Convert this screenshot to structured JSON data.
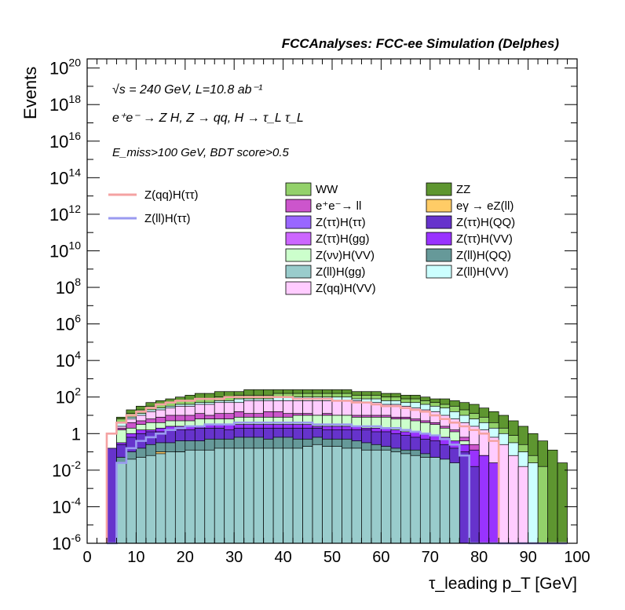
{
  "chart_data": {
    "type": "area",
    "title": "FCCAnalyses: FCC-ee Simulation (Delphes)",
    "xlabel": "τ_leading p_T [GeV]",
    "ylabel": "Events",
    "xlim": [
      0,
      100
    ],
    "ylim_log10": [
      -6,
      20.5
    ],
    "log_y": true,
    "x_ticks": [
      "0",
      "10",
      "20",
      "30",
      "40",
      "50",
      "60",
      "70",
      "80",
      "90",
      "100"
    ],
    "y_ticks": [
      "10^-6",
      "10^-4",
      "10^-2",
      "1",
      "10^2",
      "10^4",
      "10^6",
      "10^8",
      "10^10",
      "10^12",
      "10^14",
      "10^16",
      "10^18",
      "10^20"
    ],
    "annotations": {
      "energy": "√s = 240 GeV, L=10.8 ab⁻¹",
      "process": "e⁺e⁻ → Z H, Z → qq, H → τ_L τ_L",
      "cuts": "E_miss>100 GeV, BDT score>0.5"
    },
    "legend_lines": [
      {
        "name": "Z(qq)H(ττ)",
        "color": "#f4a2a2"
      },
      {
        "name": "Z(ll)H(ττ)",
        "color": "#9a9af0"
      }
    ],
    "legend_stack": [
      {
        "name": "WW",
        "color": "#93d16a"
      },
      {
        "name": "ZZ",
        "color": "#5e9630"
      },
      {
        "name": "e⁺e⁻→ ll",
        "color": "#cc55cc"
      },
      {
        "name": "eγ → eZ(ll)",
        "color": "#ffcc66"
      },
      {
        "name": "Z(ττ)H(ττ)",
        "color": "#9966ff"
      },
      {
        "name": "Z(ττ)H(QQ)",
        "color": "#6633cc"
      },
      {
        "name": "Z(ττ)H(gg)",
        "color": "#cc66ff"
      },
      {
        "name": "Z(ττ)H(VV)",
        "color": "#9933ff"
      },
      {
        "name": "Z(νν)H(VV)",
        "color": "#ccffcc"
      },
      {
        "name": "Z(ll)H(QQ)",
        "color": "#669999"
      },
      {
        "name": "Z(ll)H(gg)",
        "color": "#99cccc"
      },
      {
        "name": "Z(ll)H(VV)",
        "color": "#ccffff"
      },
      {
        "name": "Z(qq)H(VV)",
        "color": "#ffccff"
      }
    ],
    "bin_low_edges": [
      4,
      6,
      8,
      10,
      12,
      14,
      16,
      18,
      20,
      22,
      24,
      26,
      28,
      30,
      32,
      34,
      36,
      38,
      40,
      42,
      44,
      46,
      48,
      50,
      52,
      54,
      56,
      58,
      60,
      62,
      64,
      66,
      68,
      70,
      72,
      74,
      76,
      78,
      80,
      82,
      84,
      86,
      88,
      90,
      92,
      94,
      96
    ],
    "stack_log10": {
      "Z(ll)H(gg)": [
        -6,
        -1.6,
        -1.4,
        -1.3,
        -1.2,
        -1.1,
        -1.0,
        -1.0,
        -0.9,
        -0.9,
        -0.9,
        -0.8,
        -0.8,
        -0.8,
        -0.8,
        -0.8,
        -0.8,
        -0.8,
        -0.8,
        -0.8,
        -0.7,
        -0.6,
        -0.7,
        -0.7,
        -0.8,
        -0.8,
        -0.9,
        -0.9,
        -0.9,
        -1.0,
        -1.1,
        -1.2,
        -1.3,
        -1.3,
        -1.4,
        -1.6,
        -6,
        -6,
        -6,
        -6,
        -6,
        -6,
        -6,
        -6,
        -6,
        -6,
        -6
      ],
      "eγ → eZ(ll)": [
        -6,
        -6,
        -6,
        -6,
        -6,
        -1.0,
        -6,
        -1.0,
        -6,
        -6,
        -6,
        -6,
        -6,
        -6,
        -6,
        -1.0,
        -6,
        -6,
        -1.0,
        -1.0,
        -6,
        -6,
        -6,
        -6,
        -6,
        -6,
        -6,
        -6,
        -6,
        -6,
        -6,
        -6,
        -6,
        -6,
        -6,
        -6,
        -6,
        -6,
        -6,
        -6,
        -6,
        -6,
        -6,
        -6,
        -6,
        -6,
        -6
      ],
      "Z(ll)H(QQ)": [
        -6,
        -1.3,
        -1.0,
        -0.8,
        -0.6,
        -0.5,
        -0.5,
        -0.4,
        -0.4,
        -0.4,
        -0.3,
        -0.3,
        -0.3,
        -0.2,
        -0.2,
        -0.2,
        -0.3,
        -0.2,
        -0.2,
        -0.3,
        -0.3,
        -0.2,
        -0.3,
        -0.3,
        -0.3,
        -0.4,
        -0.5,
        -0.6,
        -0.7,
        -0.8,
        -0.9,
        -0.9,
        -1.1,
        -1.3,
        -1.5,
        -1.8,
        -6,
        -6,
        -6,
        -6,
        -6,
        -6,
        -6,
        -6,
        -6,
        -6,
        -6
      ],
      "Z(ττ)H(QQ)": [
        -0.8,
        -0.6,
        -0.2,
        0.0,
        0.1,
        0.1,
        0.2,
        0.2,
        0.2,
        0.3,
        0.3,
        0.3,
        0.2,
        0.3,
        0.3,
        0.3,
        0.3,
        0.3,
        0.3,
        0.3,
        0.3,
        0.3,
        0.2,
        0.2,
        0.2,
        0.2,
        0.2,
        0.1,
        0.1,
        0.0,
        -0.1,
        -0.2,
        -0.3,
        -0.4,
        -0.6,
        -0.8,
        -1.0,
        -1.8,
        -6,
        -6,
        -6,
        -6,
        -6,
        -6,
        -6,
        -6,
        -6
      ],
      "Z(ττ)H(VV)": [
        -1.5,
        -0.5,
        0.0,
        0.2,
        0.2,
        0.3,
        0.4,
        0.4,
        0.4,
        0.4,
        0.5,
        0.5,
        0.5,
        0.5,
        0.5,
        0.5,
        0.5,
        0.5,
        0.5,
        0.5,
        0.5,
        0.4,
        0.4,
        0.4,
        0.4,
        0.4,
        0.3,
        0.3,
        0.3,
        0.2,
        0.1,
        0.1,
        0.0,
        -0.1,
        -0.2,
        -0.4,
        -0.6,
        -0.9,
        -1.2,
        -1.6,
        -6,
        -6,
        -6,
        -6,
        -6,
        -6,
        -6
      ],
      "Z(νν)H(VV)": [
        -6,
        0.2,
        0.3,
        0.5,
        0.6,
        0.6,
        0.7,
        0.7,
        0.7,
        0.8,
        0.8,
        0.8,
        0.8,
        0.9,
        0.9,
        0.9,
        0.9,
        0.9,
        0.9,
        1.0,
        1.0,
        1.0,
        1.0,
        1.0,
        1.0,
        0.9,
        0.9,
        0.9,
        0.9,
        0.8,
        0.8,
        0.7,
        0.6,
        0.5,
        0.3,
        0.1,
        -0.4,
        -1.0,
        -1.5,
        -6,
        -6,
        -6,
        -6,
        -6,
        -6,
        -6,
        -6
      ],
      "e⁺e⁻→ ll": [
        -6,
        0.3,
        0.6,
        0.7,
        0.8,
        0.9,
        1.0,
        1.0,
        1.0,
        1.1,
        1.0,
        1.1,
        1.1,
        1.2,
        1.1,
        1.1,
        1.2,
        1.2,
        1.1,
        1.1,
        1.1,
        1.0,
        1.1,
        1.0,
        1.0,
        1.0,
        1.0,
        1.0,
        1.0,
        0.9,
        0.9,
        0.8,
        0.7,
        0.6,
        0.4,
        0.2,
        -0.2,
        -0.6,
        -1.2,
        -6,
        -6,
        -6,
        -6,
        -6,
        -6,
        -6,
        -6
      ],
      "Z(qq)H(VV)": [
        -6,
        0.4,
        0.8,
        1.0,
        1.2,
        1.3,
        1.4,
        1.5,
        1.5,
        1.6,
        1.6,
        1.7,
        1.7,
        1.7,
        1.8,
        1.8,
        1.8,
        1.8,
        1.8,
        1.8,
        1.8,
        1.8,
        1.8,
        1.8,
        1.8,
        1.8,
        1.7,
        1.7,
        1.6,
        1.6,
        1.5,
        1.4,
        1.3,
        1.2,
        1.0,
        0.8,
        0.6,
        0.4,
        0.2,
        -0.2,
        -0.6,
        -1.2,
        -1.8,
        -6,
        -6,
        -6,
        -6
      ],
      "Z(ll)H(VV)": [
        -6,
        0.6,
        0.9,
        1.1,
        1.3,
        1.4,
        1.5,
        1.6,
        1.6,
        1.7,
        1.7,
        1.8,
        1.8,
        1.9,
        1.9,
        1.9,
        1.9,
        2.0,
        2.0,
        2.0,
        2.0,
        2.0,
        2.0,
        2.0,
        2.0,
        1.9,
        1.9,
        1.9,
        1.8,
        1.8,
        1.7,
        1.7,
        1.6,
        1.5,
        1.4,
        1.2,
        1.0,
        0.8,
        0.6,
        0.3,
        0.0,
        -0.5,
        -1.0,
        -1.6,
        -6,
        -6,
        -6
      ],
      "WW": [
        -6,
        0.8,
        1.1,
        1.3,
        1.5,
        1.6,
        1.7,
        1.8,
        1.8,
        1.9,
        1.9,
        2.0,
        2.0,
        2.1,
        2.1,
        2.1,
        2.1,
        2.2,
        2.2,
        2.2,
        2.2,
        2.2,
        2.2,
        2.2,
        2.2,
        2.1,
        2.1,
        2.1,
        2.0,
        2.0,
        1.9,
        1.9,
        1.8,
        1.7,
        1.6,
        1.5,
        1.3,
        1.1,
        0.9,
        0.6,
        0.3,
        -0.1,
        -0.6,
        -1.2,
        -1.8,
        -6,
        -6
      ],
      "ZZ": [
        -6,
        0.9,
        1.3,
        1.5,
        1.7,
        1.8,
        1.9,
        2.0,
        2.1,
        2.2,
        2.2,
        2.3,
        2.3,
        2.3,
        2.4,
        2.4,
        2.4,
        2.4,
        2.4,
        2.4,
        2.4,
        2.4,
        2.4,
        2.4,
        2.4,
        2.3,
        2.3,
        2.3,
        2.2,
        2.2,
        2.1,
        2.1,
        2.0,
        1.9,
        1.9,
        1.8,
        1.7,
        1.6,
        1.4,
        1.2,
        1.0,
        0.7,
        0.4,
        0.0,
        -0.4,
        -0.9,
        -1.6
      ]
    },
    "stack_order": [
      "Z(ll)H(gg)",
      "eγ → eZ(ll)",
      "Z(ll)H(QQ)",
      "Z(ττ)H(QQ)",
      "Z(ττ)H(VV)",
      "Z(νν)H(VV)",
      "e⁺e⁻→ ll",
      "Z(qq)H(VV)",
      "Z(ll)H(VV)",
      "WW",
      "ZZ"
    ],
    "signal_log10": {
      "Z(qq)H(ττ)": [
        0.0,
        0.6,
        1.0,
        1.2,
        1.4,
        1.6,
        1.7,
        1.8,
        1.8,
        1.9,
        1.9,
        1.9,
        2.0,
        2.0,
        2.0,
        2.0,
        2.0,
        2.0,
        2.0,
        1.9,
        1.9,
        1.9,
        1.9,
        1.8,
        1.8,
        1.7,
        1.7,
        1.6,
        1.5,
        1.5,
        1.4,
        1.3,
        1.2,
        1.0,
        0.8,
        0.6,
        0.4,
        0.2,
        0.0,
        -0.4,
        -6,
        -6,
        -6,
        -6,
        -6,
        -6,
        -6
      ],
      "Z(ll)H(ττ)": [
        -6,
        -1.6,
        -0.8,
        -0.4,
        -0.2,
        0.0,
        0.2,
        0.3,
        0.4,
        0.4,
        0.5,
        0.5,
        0.5,
        0.6,
        0.6,
        0.6,
        0.6,
        0.6,
        0.6,
        0.6,
        0.6,
        0.5,
        0.5,
        0.5,
        0.5,
        0.4,
        0.4,
        0.4,
        0.3,
        0.3,
        0.2,
        0.1,
        0.0,
        -0.1,
        -0.3,
        -0.6,
        -1.2,
        -6,
        -6,
        -6,
        -6,
        -6,
        -6,
        -6,
        -6,
        -6,
        -6
      ]
    }
  }
}
